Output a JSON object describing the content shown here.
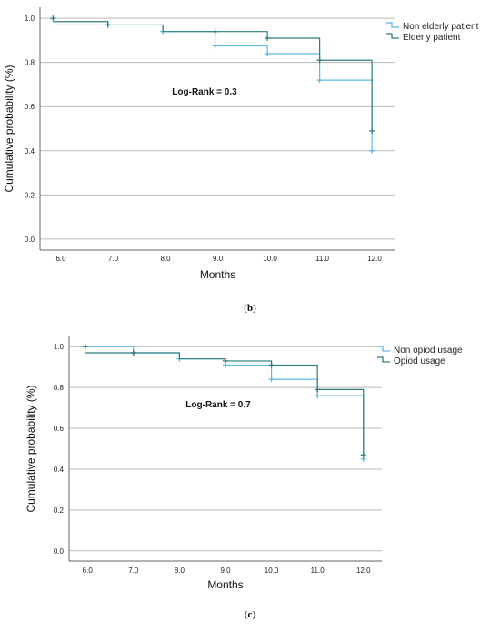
{
  "chart_data": [
    {
      "type": "line",
      "panel_label": "b",
      "xlabel": "Months",
      "ylabel": "Cumulative probability (%)",
      "x_ticks": [
        "6.0",
        "7.0",
        "8.0",
        "9.0",
        "10.0",
        "11.0",
        "12.0"
      ],
      "y_ticks": [
        "0.0",
        "0.2",
        "0.4",
        "0.6",
        "0.8",
        "1.0"
      ],
      "xlim": [
        5.6,
        12.4
      ],
      "ylim": [
        -0.05,
        1.05
      ],
      "grid": "horizontal",
      "legend_position": "top-right",
      "annotation": "Log-Rank = 0.3",
      "series": [
        {
          "name": "Non elderly patient",
          "color": "#5bb8e8",
          "step_x": [
            5.85,
            6.9,
            7.95,
            8.95,
            9.95,
            10.95,
            11.95
          ],
          "step_y": [
            0.97,
            0.97,
            0.94,
            0.875,
            0.84,
            0.72,
            0.4
          ],
          "censor_x": [
            5.85,
            6.9,
            7.95,
            8.95,
            9.95,
            10.95,
            11.95
          ],
          "censor_y": [
            1.0,
            0.97,
            0.94,
            0.875,
            0.84,
            0.72,
            0.4
          ]
        },
        {
          "name": "Elderly patient",
          "color": "#2e7d7d",
          "step_x": [
            5.85,
            6.9,
            7.95,
            8.95,
            9.95,
            10.95,
            11.95
          ],
          "step_y": [
            0.985,
            0.97,
            0.94,
            0.94,
            0.91,
            0.81,
            0.49
          ],
          "censor_x": [
            5.85,
            6.9,
            8.95,
            9.95,
            10.95,
            11.95
          ],
          "censor_y": [
            1.0,
            0.97,
            0.94,
            0.91,
            0.81,
            0.49
          ]
        }
      ]
    },
    {
      "type": "line",
      "panel_label": "c",
      "xlabel": "Months",
      "ylabel": "Cumulative probability (%)",
      "x_ticks": [
        "6.0",
        "7.0",
        "8.0",
        "9.0",
        "10.0",
        "11.0",
        "12.0"
      ],
      "y_ticks": [
        "0.0",
        "0.2",
        "0.4",
        "0.6",
        "0.8",
        "1.0"
      ],
      "xlim": [
        5.6,
        12.4
      ],
      "ylim": [
        -0.05,
        1.05
      ],
      "grid": "horizontal",
      "legend_position": "top-right",
      "annotation": "Log-Rank = 0.7",
      "series": [
        {
          "name": "Non opiod usage",
          "color": "#5bb8e8",
          "step_x": [
            5.95,
            7.0,
            8.0,
            9.0,
            10.0,
            11.0,
            12.0
          ],
          "step_y": [
            1.0,
            0.97,
            0.94,
            0.91,
            0.84,
            0.76,
            0.45
          ],
          "censor_x": [
            5.95,
            7.0,
            8.0,
            9.0,
            10.0,
            11.0,
            12.0
          ],
          "censor_y": [
            1.0,
            0.97,
            0.94,
            0.91,
            0.84,
            0.76,
            0.45
          ]
        },
        {
          "name": "Opiod usage",
          "color": "#2e7d7d",
          "step_x": [
            5.95,
            7.0,
            8.0,
            9.0,
            10.0,
            11.0,
            12.0
          ],
          "step_y": [
            0.97,
            0.97,
            0.94,
            0.93,
            0.91,
            0.79,
            0.47
          ],
          "censor_x": [
            5.95,
            7.0,
            9.0,
            10.0,
            11.0,
            12.0
          ],
          "censor_y": [
            1.0,
            0.97,
            0.93,
            0.91,
            0.79,
            0.47
          ]
        }
      ]
    }
  ],
  "captions": {
    "b": "b",
    "c": "c"
  }
}
